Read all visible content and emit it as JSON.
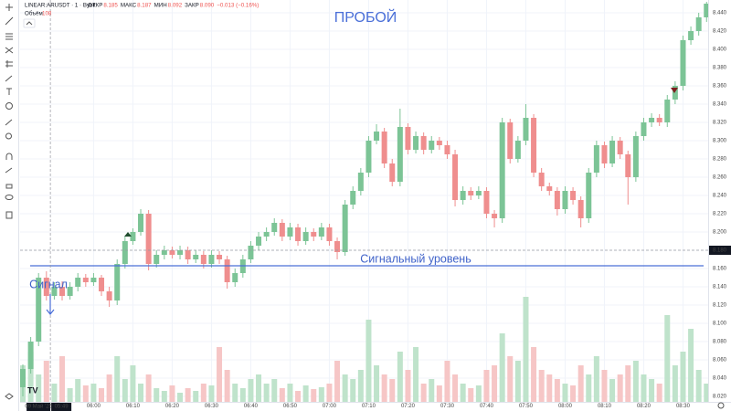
{
  "legend": {
    "symbol": "LINEAR:ARUSDT · 1 · Bybit",
    "ohlc": [
      {
        "label": "ОТКР",
        "value": "8.185"
      },
      {
        "label": "МАКС",
        "value": "8.187"
      },
      {
        "label": "МИН",
        "value": "8.092"
      },
      {
        "label": "ЗАКР",
        "value": "8.090"
      }
    ],
    "change": "−0.013 (−0.16%)",
    "volume_label": "Объём",
    "volume_value": "108"
  },
  "chart_data": {
    "type": "candlestick",
    "annotations": {
      "breakout": "ПРОБОЙ",
      "level_label": "Сигнальный уровень",
      "signal": "Сигнал"
    },
    "signal_level": 8.163,
    "last_price": {
      "value": 8.18,
      "label": "8.180"
    },
    "crosshair": {
      "x": 3.5,
      "date": "09 Май '25",
      "time": "05:49"
    },
    "up_color": "#7cc496",
    "down_color": "#ef8e8e",
    "up_volume_color": "#bfe3cb",
    "down_volume_color": "#f6c6c6",
    "grid": true,
    "xlim": [
      -0.35,
      87.2
    ],
    "xticks": [
      {
        "value": 9,
        "label": "06:00"
      },
      {
        "value": 14,
        "label": "06:10"
      },
      {
        "value": 19,
        "label": "06:20"
      },
      {
        "value": 24,
        "label": "06:30"
      },
      {
        "value": 29,
        "label": "06:40"
      },
      {
        "value": 34,
        "label": "06:50"
      },
      {
        "value": 39,
        "label": "07:00"
      },
      {
        "value": 44,
        "label": "07:10"
      },
      {
        "value": 49,
        "label": "07:20"
      },
      {
        "value": 54,
        "label": "07:30"
      },
      {
        "value": 59,
        "label": "07:40"
      },
      {
        "value": 64,
        "label": "07:50"
      },
      {
        "value": 69,
        "label": "08:00"
      },
      {
        "value": 74,
        "label": "08:10"
      },
      {
        "value": 79,
        "label": "08:20"
      },
      {
        "value": 84,
        "label": "08:30"
      }
    ],
    "ylim": [
      8.014,
      8.454
    ],
    "yticks": [
      {
        "value": 8.02,
        "label": "8.020"
      },
      {
        "value": 8.04,
        "label": "8.040"
      },
      {
        "value": 8.06,
        "label": "8.060"
      },
      {
        "value": 8.08,
        "label": "8.080"
      },
      {
        "value": 8.1,
        "label": "8.100"
      },
      {
        "value": 8.12,
        "label": "8.120"
      },
      {
        "value": 8.14,
        "label": "8.140"
      },
      {
        "value": 8.16,
        "label": "8.160"
      },
      {
        "value": 8.2,
        "label": "8.200"
      },
      {
        "value": 8.22,
        "label": "8.220"
      },
      {
        "value": 8.24,
        "label": "8.240"
      },
      {
        "value": 8.26,
        "label": "8.260"
      },
      {
        "value": 8.28,
        "label": "8.280"
      },
      {
        "value": 8.3,
        "label": "8.300"
      },
      {
        "value": 8.32,
        "label": "8.320"
      },
      {
        "value": 8.34,
        "label": "8.340"
      },
      {
        "value": 8.36,
        "label": "8.360"
      },
      {
        "value": 8.38,
        "label": "8.380"
      },
      {
        "value": 8.4,
        "label": "8.400"
      },
      {
        "value": 8.42,
        "label": "8.420"
      },
      {
        "value": 8.44,
        "label": "8.440"
      }
    ],
    "vlim": [
      0,
      150
    ],
    "open": [
      8.03,
      8.05,
      8.08,
      8.15,
      8.13,
      8.14,
      8.13,
      8.14,
      8.15,
      8.145,
      8.15,
      8.135,
      8.125,
      8.165,
      8.19,
      8.2,
      8.22,
      8.165,
      8.175,
      8.18,
      8.175,
      8.18,
      8.17,
      8.175,
      8.165,
      8.175,
      8.17,
      8.145,
      8.155,
      8.17,
      8.185,
      8.195,
      8.2,
      8.21,
      8.195,
      8.205,
      8.19,
      8.2,
      8.195,
      8.205,
      8.19,
      8.178,
      8.23,
      8.245,
      8.265,
      8.3,
      8.31,
      8.275,
      8.255,
      8.315,
      8.29,
      8.305,
      8.29,
      8.3,
      8.295,
      8.285,
      8.235,
      8.245,
      8.24,
      8.245,
      8.22,
      8.215,
      8.32,
      8.28,
      8.3,
      8.325,
      8.265,
      8.25,
      8.245,
      8.225,
      8.245,
      8.235,
      8.215,
      8.265,
      8.295,
      8.275,
      8.3,
      8.285,
      8.26,
      8.305,
      8.32,
      8.325,
      8.32,
      8.345,
      8.36,
      8.41,
      8.42,
      8.435
    ],
    "high": [
      8.055,
      8.085,
      8.155,
      8.157,
      8.145,
      8.146,
      8.145,
      8.155,
      8.154,
      8.155,
      8.153,
      8.14,
      8.17,
      8.195,
      8.204,
      8.225,
      8.224,
      8.18,
      8.185,
      8.184,
      8.185,
      8.184,
      8.18,
      8.179,
      8.18,
      8.179,
      8.174,
      8.16,
      8.175,
      8.19,
      8.2,
      8.205,
      8.215,
      8.214,
      8.21,
      8.209,
      8.205,
      8.204,
      8.21,
      8.209,
      8.194,
      8.235,
      8.25,
      8.27,
      8.305,
      8.318,
      8.314,
      8.28,
      8.335,
      8.319,
      8.31,
      8.309,
      8.305,
      8.304,
      8.3,
      8.29,
      8.25,
      8.249,
      8.25,
      8.249,
      8.224,
      8.325,
      8.324,
      8.305,
      8.34,
      8.329,
      8.27,
      8.254,
      8.249,
      8.25,
      8.249,
      8.239,
      8.27,
      8.3,
      8.299,
      8.305,
      8.304,
      8.289,
      8.31,
      8.325,
      8.33,
      8.329,
      8.35,
      8.365,
      8.415,
      8.425,
      8.44,
      8.452
    ],
    "low": [
      8.02,
      8.045,
      8.075,
      8.125,
      8.126,
      8.125,
      8.126,
      8.135,
      8.14,
      8.141,
      8.13,
      8.118,
      8.12,
      8.16,
      8.186,
      8.196,
      8.158,
      8.161,
      8.17,
      8.171,
      8.17,
      8.165,
      8.166,
      8.16,
      8.161,
      8.165,
      8.138,
      8.14,
      8.15,
      8.166,
      8.18,
      8.19,
      8.196,
      8.19,
      8.191,
      8.185,
      8.186,
      8.19,
      8.191,
      8.185,
      8.17,
      8.174,
      8.225,
      8.24,
      8.26,
      8.296,
      8.27,
      8.25,
      8.25,
      8.285,
      8.286,
      8.285,
      8.286,
      8.29,
      8.28,
      8.228,
      8.23,
      8.235,
      8.236,
      8.215,
      8.205,
      8.21,
      8.275,
      8.276,
      8.295,
      8.26,
      8.245,
      8.24,
      8.218,
      8.22,
      8.23,
      8.205,
      8.21,
      8.26,
      8.27,
      8.271,
      8.28,
      8.23,
      8.255,
      8.3,
      8.315,
      8.316,
      8.315,
      8.34,
      8.355,
      8.405,
      8.415,
      8.43
    ],
    "close": [
      8.05,
      8.08,
      8.15,
      8.13,
      8.14,
      8.13,
      8.14,
      8.15,
      8.145,
      8.15,
      8.135,
      8.125,
      8.165,
      8.19,
      8.2,
      8.22,
      8.165,
      8.175,
      8.18,
      8.175,
      8.18,
      8.17,
      8.175,
      8.165,
      8.175,
      8.17,
      8.145,
      8.155,
      8.17,
      8.185,
      8.195,
      8.2,
      8.21,
      8.195,
      8.205,
      8.19,
      8.2,
      8.195,
      8.205,
      8.19,
      8.178,
      8.23,
      8.245,
      8.265,
      8.3,
      8.31,
      8.275,
      8.255,
      8.315,
      8.29,
      8.305,
      8.29,
      8.3,
      8.295,
      8.285,
      8.235,
      8.245,
      8.24,
      8.245,
      8.22,
      8.215,
      8.32,
      8.28,
      8.3,
      8.325,
      8.265,
      8.25,
      8.245,
      8.225,
      8.245,
      8.235,
      8.215,
      8.265,
      8.295,
      8.275,
      8.3,
      8.285,
      8.26,
      8.305,
      8.32,
      8.325,
      8.32,
      8.345,
      8.36,
      8.41,
      8.42,
      8.435,
      8.45
    ],
    "volume": [
      40,
      55,
      30,
      45,
      20,
      50,
      15,
      25,
      18,
      20,
      15,
      30,
      50,
      25,
      40,
      20,
      30,
      15,
      12,
      18,
      10,
      15,
      12,
      20,
      18,
      60,
      35,
      20,
      15,
      25,
      30,
      20,
      25,
      15,
      20,
      12,
      18,
      14,
      16,
      20,
      45,
      30,
      25,
      35,
      90,
      40,
      30,
      25,
      55,
      35,
      60,
      20,
      25,
      18,
      45,
      30,
      20,
      15,
      18,
      35,
      40,
      75,
      50,
      45,
      115,
      60,
      35,
      30,
      25,
      20,
      18,
      40,
      30,
      50,
      35,
      25,
      30,
      40,
      45,
      30,
      25,
      20,
      95,
      40,
      55,
      80,
      35,
      20
    ]
  }
}
